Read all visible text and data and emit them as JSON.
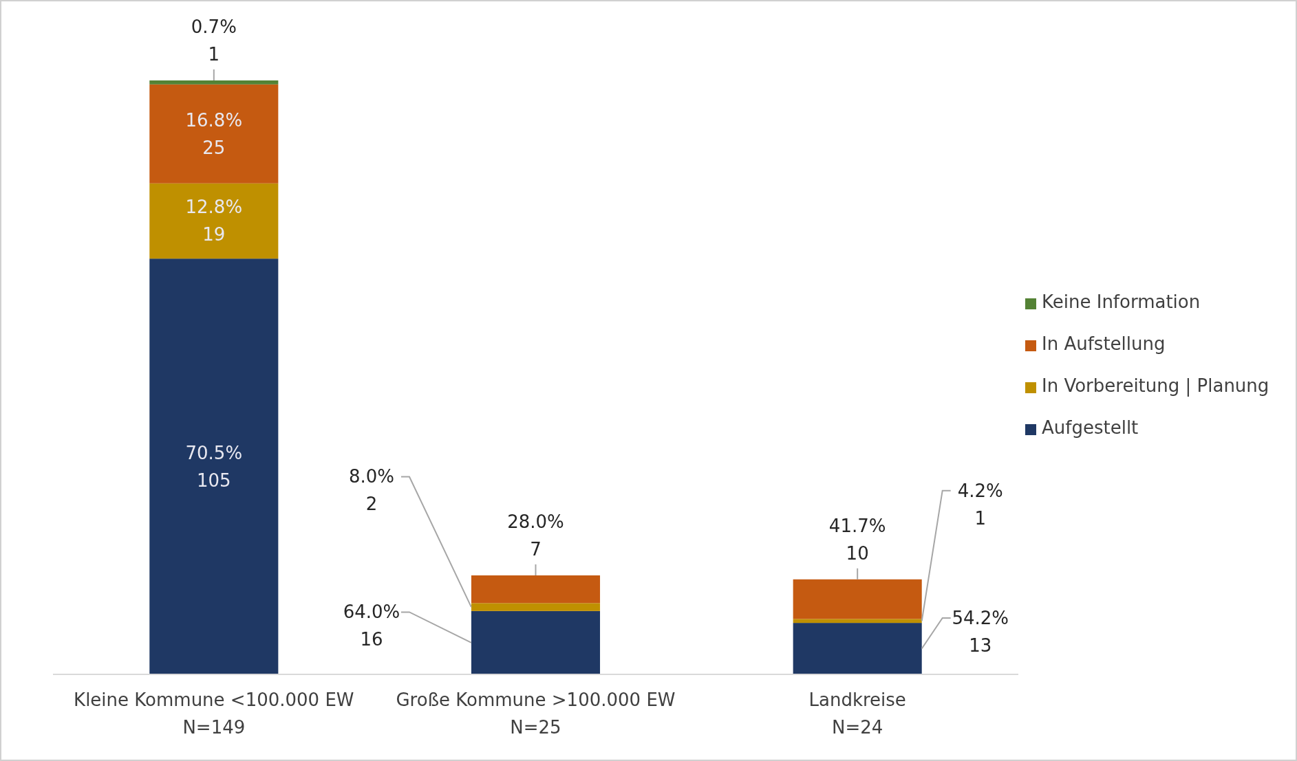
{
  "chart_data": {
    "type": "bar",
    "stacked": true,
    "legend": "right",
    "categories": [
      "Kleine Kommune <100.000 EW\nN=149",
      "Große Kommune >100.000 EW\nN=25",
      "Landkreise\nN=24"
    ],
    "series": [
      {
        "name": "Aufgestellt",
        "color": "#1f3864",
        "values": [
          105,
          16,
          13
        ],
        "value_labels": [
          "70.5%\n105",
          "64.0%\n16",
          "54.2%\n13"
        ]
      },
      {
        "name": "In Vorbereitung | Planung",
        "color": "#bf9000",
        "values": [
          19,
          2,
          1
        ],
        "value_labels": [
          "12.8%\n19",
          "8.0%\n2",
          "4.2%\n1"
        ]
      },
      {
        "name": "In Aufstellung",
        "color": "#c55a11",
        "values": [
          25,
          7,
          10
        ],
        "value_labels": [
          "16.8%\n25",
          "28.0%\n7",
          "41.7%\n10"
        ]
      },
      {
        "name": "Keine Information",
        "color": "#548235",
        "values": [
          1,
          0,
          0
        ],
        "value_labels": [
          "0.7%\n1",
          null,
          null
        ]
      }
    ]
  }
}
